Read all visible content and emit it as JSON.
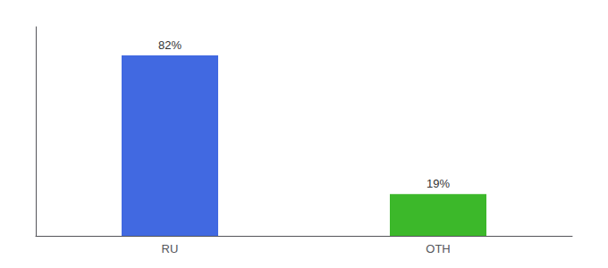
{
  "chart_data": {
    "type": "bar",
    "categories": [
      "RU",
      "OTH"
    ],
    "values": [
      82,
      19
    ],
    "value_labels": [
      "82%",
      "19%"
    ],
    "colors": [
      "#4169E1",
      "#3CB82A"
    ],
    "ylim": [
      0,
      95
    ],
    "data_labels": true,
    "tick_labels": "x",
    "grid": false
  }
}
